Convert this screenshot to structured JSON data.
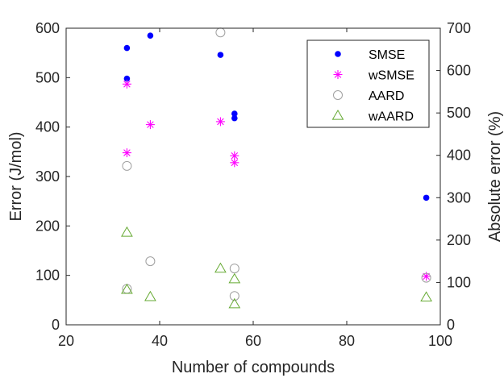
{
  "chart_data": {
    "type": "scatter",
    "xlabel": "Number of compounds",
    "ylabel": "Error (J/mol)",
    "y2label": "Absolute error (%)",
    "xlim": [
      20,
      100
    ],
    "ylim": [
      0,
      600
    ],
    "y2lim": [
      0,
      700
    ],
    "xticks": [
      "20",
      "40",
      "60",
      "80",
      "100"
    ],
    "yticks": [
      "0",
      "100",
      "200",
      "300",
      "400",
      "500",
      "600"
    ],
    "y2ticks": [
      "0",
      "100",
      "200",
      "300",
      "400",
      "500",
      "600",
      "700"
    ],
    "grid": false,
    "legend_position": "top-right",
    "series": [
      {
        "name": "SMSE",
        "axis": "left",
        "marker": "dot",
        "color": "#0000ff",
        "points": [
          [
            33,
            560
          ],
          [
            33,
            498
          ],
          [
            38,
            585
          ],
          [
            53,
            546
          ],
          [
            56,
            427
          ],
          [
            56,
            418
          ],
          [
            97,
            257
          ]
        ]
      },
      {
        "name": "wSMSE",
        "axis": "left",
        "marker": "asterisk",
        "color": "#ff00ff",
        "points": [
          [
            33,
            487
          ],
          [
            33,
            348
          ],
          [
            38,
            405
          ],
          [
            53,
            411
          ],
          [
            56,
            342
          ],
          [
            56,
            328
          ],
          [
            97,
            98
          ]
        ]
      },
      {
        "name": "AARD",
        "axis": "right",
        "marker": "circle",
        "color": "#a0a0a0",
        "points": [
          [
            33,
            375
          ],
          [
            33,
            85
          ],
          [
            38,
            150
          ],
          [
            53,
            690
          ],
          [
            56,
            133
          ],
          [
            56,
            68
          ],
          [
            97,
            111
          ]
        ]
      },
      {
        "name": "wAARD",
        "axis": "right",
        "marker": "triangle",
        "color": "#66aa33",
        "points": [
          [
            33,
            218
          ],
          [
            33,
            83
          ],
          [
            38,
            66
          ],
          [
            53,
            133
          ],
          [
            56,
            108
          ],
          [
            56,
            49
          ],
          [
            97,
            65
          ]
        ]
      }
    ]
  }
}
